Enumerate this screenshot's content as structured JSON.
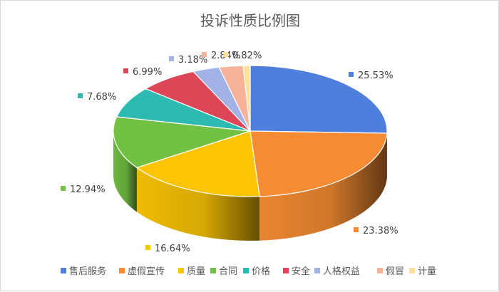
{
  "chart_data": {
    "type": "pie",
    "title": "投诉性质比例图",
    "categories": [
      "售后服务",
      "虚假宣传",
      "质量",
      "合同",
      "价格",
      "安全",
      "人格权益",
      "假冒",
      "计量"
    ],
    "values": [
      25.53,
      23.38,
      16.64,
      12.94,
      7.68,
      6.99,
      3.18,
      2.84,
      0.82
    ],
    "labels": [
      "25.53%",
      "23.38%",
      "16.64%",
      "12.94%",
      "7.68%",
      "6.99%",
      "3.18%",
      "2.84%",
      "0.82%"
    ],
    "unit": "%",
    "colors": [
      "#4f7fdc",
      "#f58c33",
      "#fbc504",
      "#73c142",
      "#2dbab0",
      "#dc4657",
      "#a2b2e6",
      "#f6b399",
      "#fde097"
    ],
    "legend_position": "bottom",
    "style": "3d-pie"
  }
}
